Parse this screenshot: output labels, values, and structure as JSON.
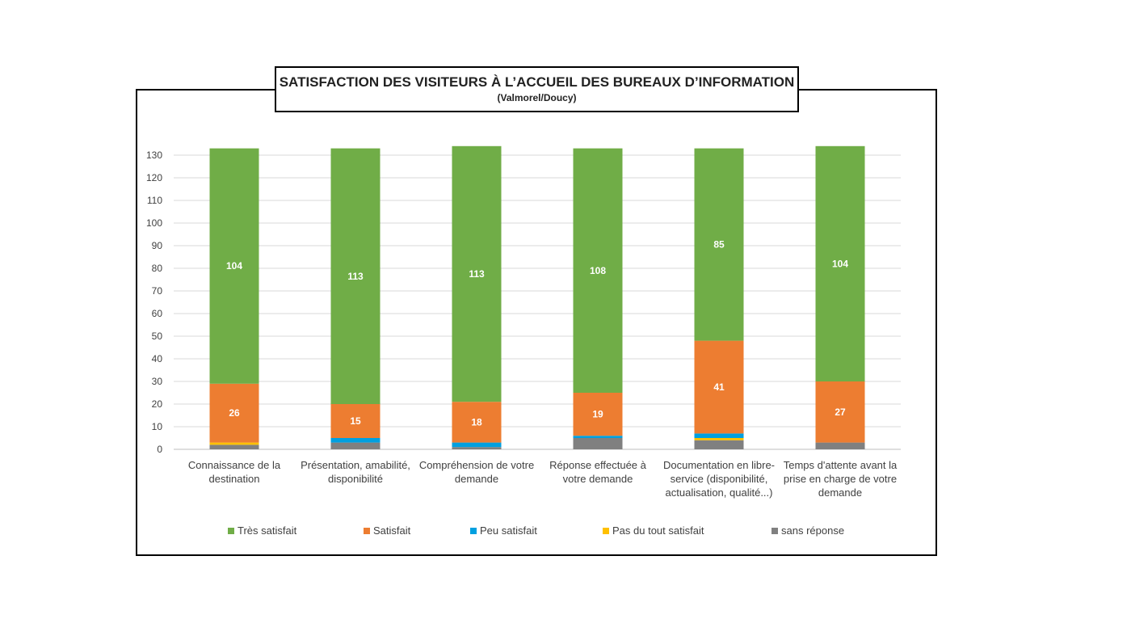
{
  "title": "SATISFACTION DES VISITEURS À L’ACCUEIL DES BUREAUX D’INFORMATION",
  "subtitle": "(Valmorel/Doucy)",
  "chart_data": {
    "type": "bar",
    "stacked": true,
    "title": "SATISFACTION DES VISITEURS À L’ACCUEIL DES BUREAUX D’INFORMATION",
    "subtitle": "(Valmorel/Doucy)",
    "ylim": [
      0,
      130
    ],
    "yticks": [
      0,
      10,
      20,
      30,
      40,
      50,
      60,
      70,
      80,
      90,
      100,
      110,
      120,
      130
    ],
    "grid": true,
    "legend_position": "bottom",
    "categories": [
      [
        "Connaissance de la",
        "destination"
      ],
      [
        "Présentation, amabilité,",
        "disponibilité"
      ],
      [
        "Compréhension de votre",
        "demande"
      ],
      [
        "Réponse effectuée à",
        "votre demande"
      ],
      [
        "Documentation en libre-",
        "service (disponibilité,",
        "actualisation, qualité...)"
      ],
      [
        "Temps d'attente avant la",
        "prise en charge de votre",
        "demande"
      ]
    ],
    "series": [
      {
        "name": "sans réponse",
        "color": "#808080",
        "values": [
          2,
          3,
          1,
          5,
          4,
          3
        ],
        "show_labels": false
      },
      {
        "name": "Pas du tout satisfait",
        "color": "#FFC000",
        "values": [
          1,
          0,
          0,
          0,
          1,
          0
        ],
        "show_labels": false
      },
      {
        "name": "Peu satisfait",
        "color": "#00A0E0",
        "values": [
          0,
          2,
          2,
          1,
          2,
          0
        ],
        "show_labels": false
      },
      {
        "name": "Satisfait",
        "color": "#ED7D31",
        "values": [
          26,
          15,
          18,
          19,
          41,
          27
        ],
        "show_labels": true
      },
      {
        "name": "Très satisfait",
        "color": "#70AD47",
        "values": [
          104,
          113,
          113,
          108,
          85,
          104
        ],
        "show_labels": true
      }
    ],
    "legend_order": [
      "Très satisfait",
      "Satisfait",
      "Peu satisfait",
      "Pas du tout satisfait",
      "sans réponse"
    ]
  }
}
